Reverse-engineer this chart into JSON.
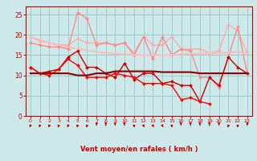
{
  "title": "",
  "xlabel": "Vent moyen/en rafales ( km/h )",
  "ylabel": "",
  "background_color": "#cce8e8",
  "grid_color": "#99cccc",
  "x": [
    0,
    1,
    2,
    3,
    4,
    5,
    6,
    7,
    8,
    9,
    10,
    11,
    12,
    13,
    14,
    15,
    16,
    17,
    18,
    19,
    20,
    21,
    22,
    23
  ],
  "lines": [
    {
      "y": [
        19.5,
        18.5,
        18.0,
        17.5,
        17.5,
        19.0,
        18.0,
        18.0,
        18.0,
        17.5,
        18.0,
        15.5,
        19.5,
        17.5,
        17.5,
        19.5,
        16.5,
        16.5,
        16.5,
        15.5,
        16.0,
        22.5,
        21.0,
        15.5
      ],
      "color": "#ffaaaa",
      "lw": 1.0,
      "marker": "D",
      "ms": 2.0
    },
    {
      "y": [
        18.0,
        17.5,
        17.0,
        17.0,
        16.5,
        25.5,
        24.0,
        17.5,
        18.0,
        17.5,
        18.0,
        15.0,
        19.5,
        14.0,
        19.5,
        15.0,
        16.5,
        16.0,
        9.5,
        9.5,
        7.0,
        14.5,
        22.0,
        10.5
      ],
      "color": "#ff8888",
      "lw": 1.0,
      "marker": "D",
      "ms": 2.0
    },
    {
      "y": [
        12.0,
        10.5,
        11.0,
        11.5,
        14.5,
        16.0,
        12.0,
        12.0,
        10.5,
        9.5,
        13.0,
        9.0,
        10.5,
        10.5,
        8.0,
        8.5,
        7.5,
        7.5,
        3.5,
        9.5,
        7.5,
        14.5,
        12.0,
        10.5
      ],
      "color": "#cc0000",
      "lw": 1.0,
      "marker": "D",
      "ms": 2.0
    },
    {
      "y": [
        12.0,
        10.5,
        10.0,
        11.5,
        14.0,
        12.5,
        9.5,
        9.5,
        9.5,
        10.5,
        10.0,
        9.5,
        8.0,
        8.0,
        8.0,
        7.5,
        4.0,
        4.5,
        3.5,
        3.0,
        null,
        null,
        null,
        null
      ],
      "color": "#ff0000",
      "lw": 1.0,
      "marker": "D",
      "ms": 2.0
    },
    {
      "y": [
        10.5,
        10.5,
        10.5,
        10.5,
        10.5,
        10.0,
        10.0,
        10.5,
        10.5,
        11.0,
        11.0,
        11.0,
        11.0,
        11.0,
        10.8,
        10.8,
        10.8,
        10.8,
        10.5,
        10.5,
        10.5,
        10.5,
        10.5,
        10.5
      ],
      "color": "#880000",
      "lw": 1.5,
      "marker": null,
      "ms": 0
    },
    {
      "y": [
        19.5,
        18.8,
        18.0,
        17.5,
        17.0,
        16.5,
        16.2,
        15.8,
        15.5,
        15.3,
        15.2,
        15.1,
        15.0,
        15.0,
        15.0,
        15.0,
        15.2,
        15.3,
        15.3,
        15.4,
        15.5,
        15.6,
        15.8,
        15.5
      ],
      "color": "#ffbbbb",
      "lw": 1.5,
      "marker": null,
      "ms": 0
    }
  ],
  "wind_angles": [
    210,
    200,
    200,
    195,
    210,
    200,
    195,
    190,
    180,
    175,
    170,
    160,
    150,
    145,
    140,
    155,
    170,
    175,
    175,
    180,
    185,
    195,
    195,
    190
  ],
  "ylim": [
    0,
    27
  ],
  "xlim": [
    -0.5,
    23.5
  ],
  "yticks": [
    0,
    5,
    10,
    15,
    20,
    25
  ],
  "xticks": [
    0,
    1,
    2,
    3,
    4,
    5,
    6,
    7,
    8,
    9,
    10,
    11,
    12,
    13,
    14,
    15,
    16,
    17,
    18,
    19,
    20,
    21,
    22,
    23
  ],
  "tick_color": "#cc0000",
  "label_color": "#cc0000",
  "axis_color": "#cc0000"
}
